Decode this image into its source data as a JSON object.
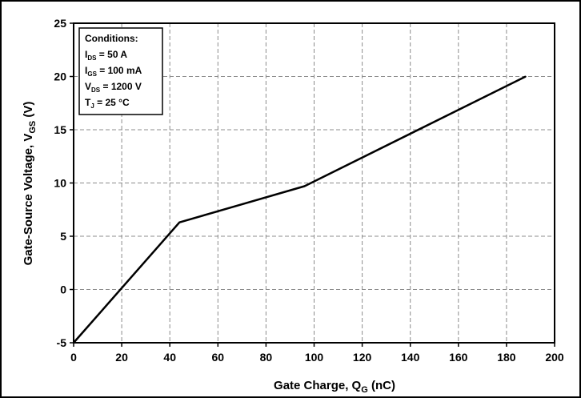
{
  "chart_data": {
    "type": "line",
    "x_label": {
      "main": "Gate Charge, Q",
      "sub": "G",
      "suffix": " (nC)"
    },
    "y_label": {
      "main": "Gate-Source Voltage, V",
      "sub": "GS",
      "suffix": " (V)"
    },
    "xlim": [
      0,
      200
    ],
    "ylim": [
      -5,
      25
    ],
    "x_ticks": [
      "0",
      "20",
      "40",
      "60",
      "80",
      "100",
      "120",
      "140",
      "160",
      "180",
      "200"
    ],
    "y_ticks": [
      "-5",
      "0",
      "5",
      "10",
      "15",
      "20",
      "25"
    ],
    "grid": true,
    "grid_style": "dashed",
    "line_color": "#000000",
    "series": [
      {
        "x": [
          0,
          44,
          96,
          188
        ],
        "y": [
          -5,
          6.3,
          9.7,
          20
        ]
      }
    ],
    "annotation": {
      "title": "Conditions:",
      "lines": [
        {
          "main": "I",
          "sub": "DS",
          "suffix": " = 50 A"
        },
        {
          "main": "I",
          "sub": "GS",
          "suffix": " = 100 mA"
        },
        {
          "main": "V",
          "sub": "DS",
          "suffix": " = 1200 V"
        },
        {
          "main": "T",
          "sub": "J",
          "suffix": " = 25 °C"
        }
      ]
    }
  }
}
